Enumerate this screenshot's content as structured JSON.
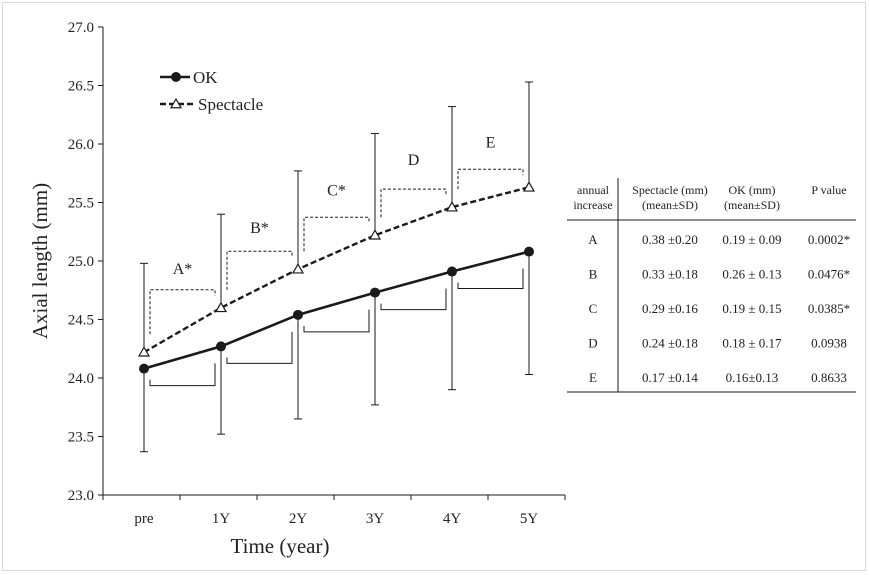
{
  "chart_data": {
    "type": "line",
    "xlabel": "Time (year)",
    "ylabel": "Axial length (mm)",
    "categories": [
      "pre",
      "1Y",
      "2Y",
      "3Y",
      "4Y",
      "5Y"
    ],
    "ylim": [
      23.0,
      27.0
    ],
    "yticks": [
      "23.0",
      "23.5",
      "24.0",
      "24.5",
      "25.0",
      "25.5",
      "26.0",
      "26.5",
      "27.0"
    ],
    "series": [
      {
        "name": "OK",
        "marker": "filled-circle",
        "line": "solid",
        "values": [
          24.08,
          24.27,
          24.54,
          24.73,
          24.91,
          25.08
        ],
        "error_low": [
          23.37,
          23.52,
          23.65,
          23.77,
          23.9,
          24.03
        ]
      },
      {
        "name": "Spectacle",
        "marker": "open-triangle",
        "line": "dashed",
        "values": [
          24.22,
          24.6,
          24.93,
          25.22,
          25.46,
          25.63
        ],
        "error_high": [
          24.98,
          25.4,
          25.77,
          26.09,
          26.32,
          26.53
        ]
      }
    ],
    "annotations": [
      "A*",
      "B*",
      "C*",
      "D",
      "E"
    ],
    "legend_position": "top-left"
  },
  "table": {
    "headers": [
      [
        "annual",
        "increase"
      ],
      [
        "Spectacle (mm)",
        "(mean±SD)"
      ],
      [
        "OK (mm)",
        "(mean±SD)"
      ],
      [
        "P value"
      ]
    ],
    "rows": [
      [
        "A",
        "0.38 ±0.20",
        "0.19 ± 0.09",
        "0.0002*"
      ],
      [
        "B",
        "0.33 ±0.18",
        "0.26 ± 0.13",
        "0.0476*"
      ],
      [
        "C",
        "0.29 ±0.16",
        "0.19 ± 0.15",
        "0.0385*"
      ],
      [
        "D",
        "0.24 ±0.18",
        "0.18 ± 0.17",
        "0.0938"
      ],
      [
        "E",
        "0.17 ±0.14",
        "0.16±0.13",
        "0.8633"
      ]
    ]
  },
  "colors": {
    "ink": "#1a1a1a",
    "frame": "#d9d9d9"
  }
}
